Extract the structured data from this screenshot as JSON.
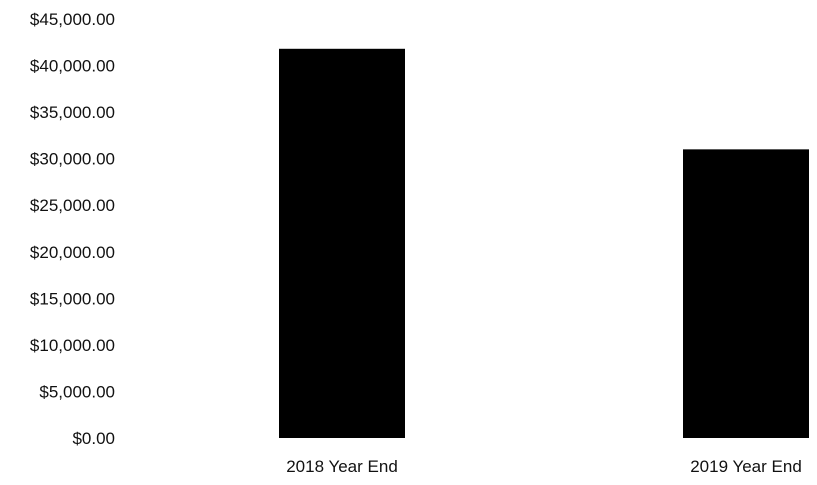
{
  "chart_data": {
    "type": "bar",
    "categories": [
      "2018 Year End",
      "2019 Year End"
    ],
    "values": [
      41800,
      31000
    ],
    "ylim": [
      0,
      45000
    ],
    "y_ticks": [
      {
        "value": 0,
        "label": "$0.00"
      },
      {
        "value": 5000,
        "label": "$5,000.00"
      },
      {
        "value": 10000,
        "label": "$10,000.00"
      },
      {
        "value": 15000,
        "label": "$15,000.00"
      },
      {
        "value": 20000,
        "label": "$20,000.00"
      },
      {
        "value": 25000,
        "label": "$25,000.00"
      },
      {
        "value": 30000,
        "label": "$30,000.00"
      },
      {
        "value": 35000,
        "label": "$35,000.00"
      },
      {
        "value": 40000,
        "label": "$40,000.00"
      },
      {
        "value": 45000,
        "label": "$45,000.00"
      }
    ],
    "grid": false,
    "legend": "none",
    "bar_color": "#000000"
  }
}
